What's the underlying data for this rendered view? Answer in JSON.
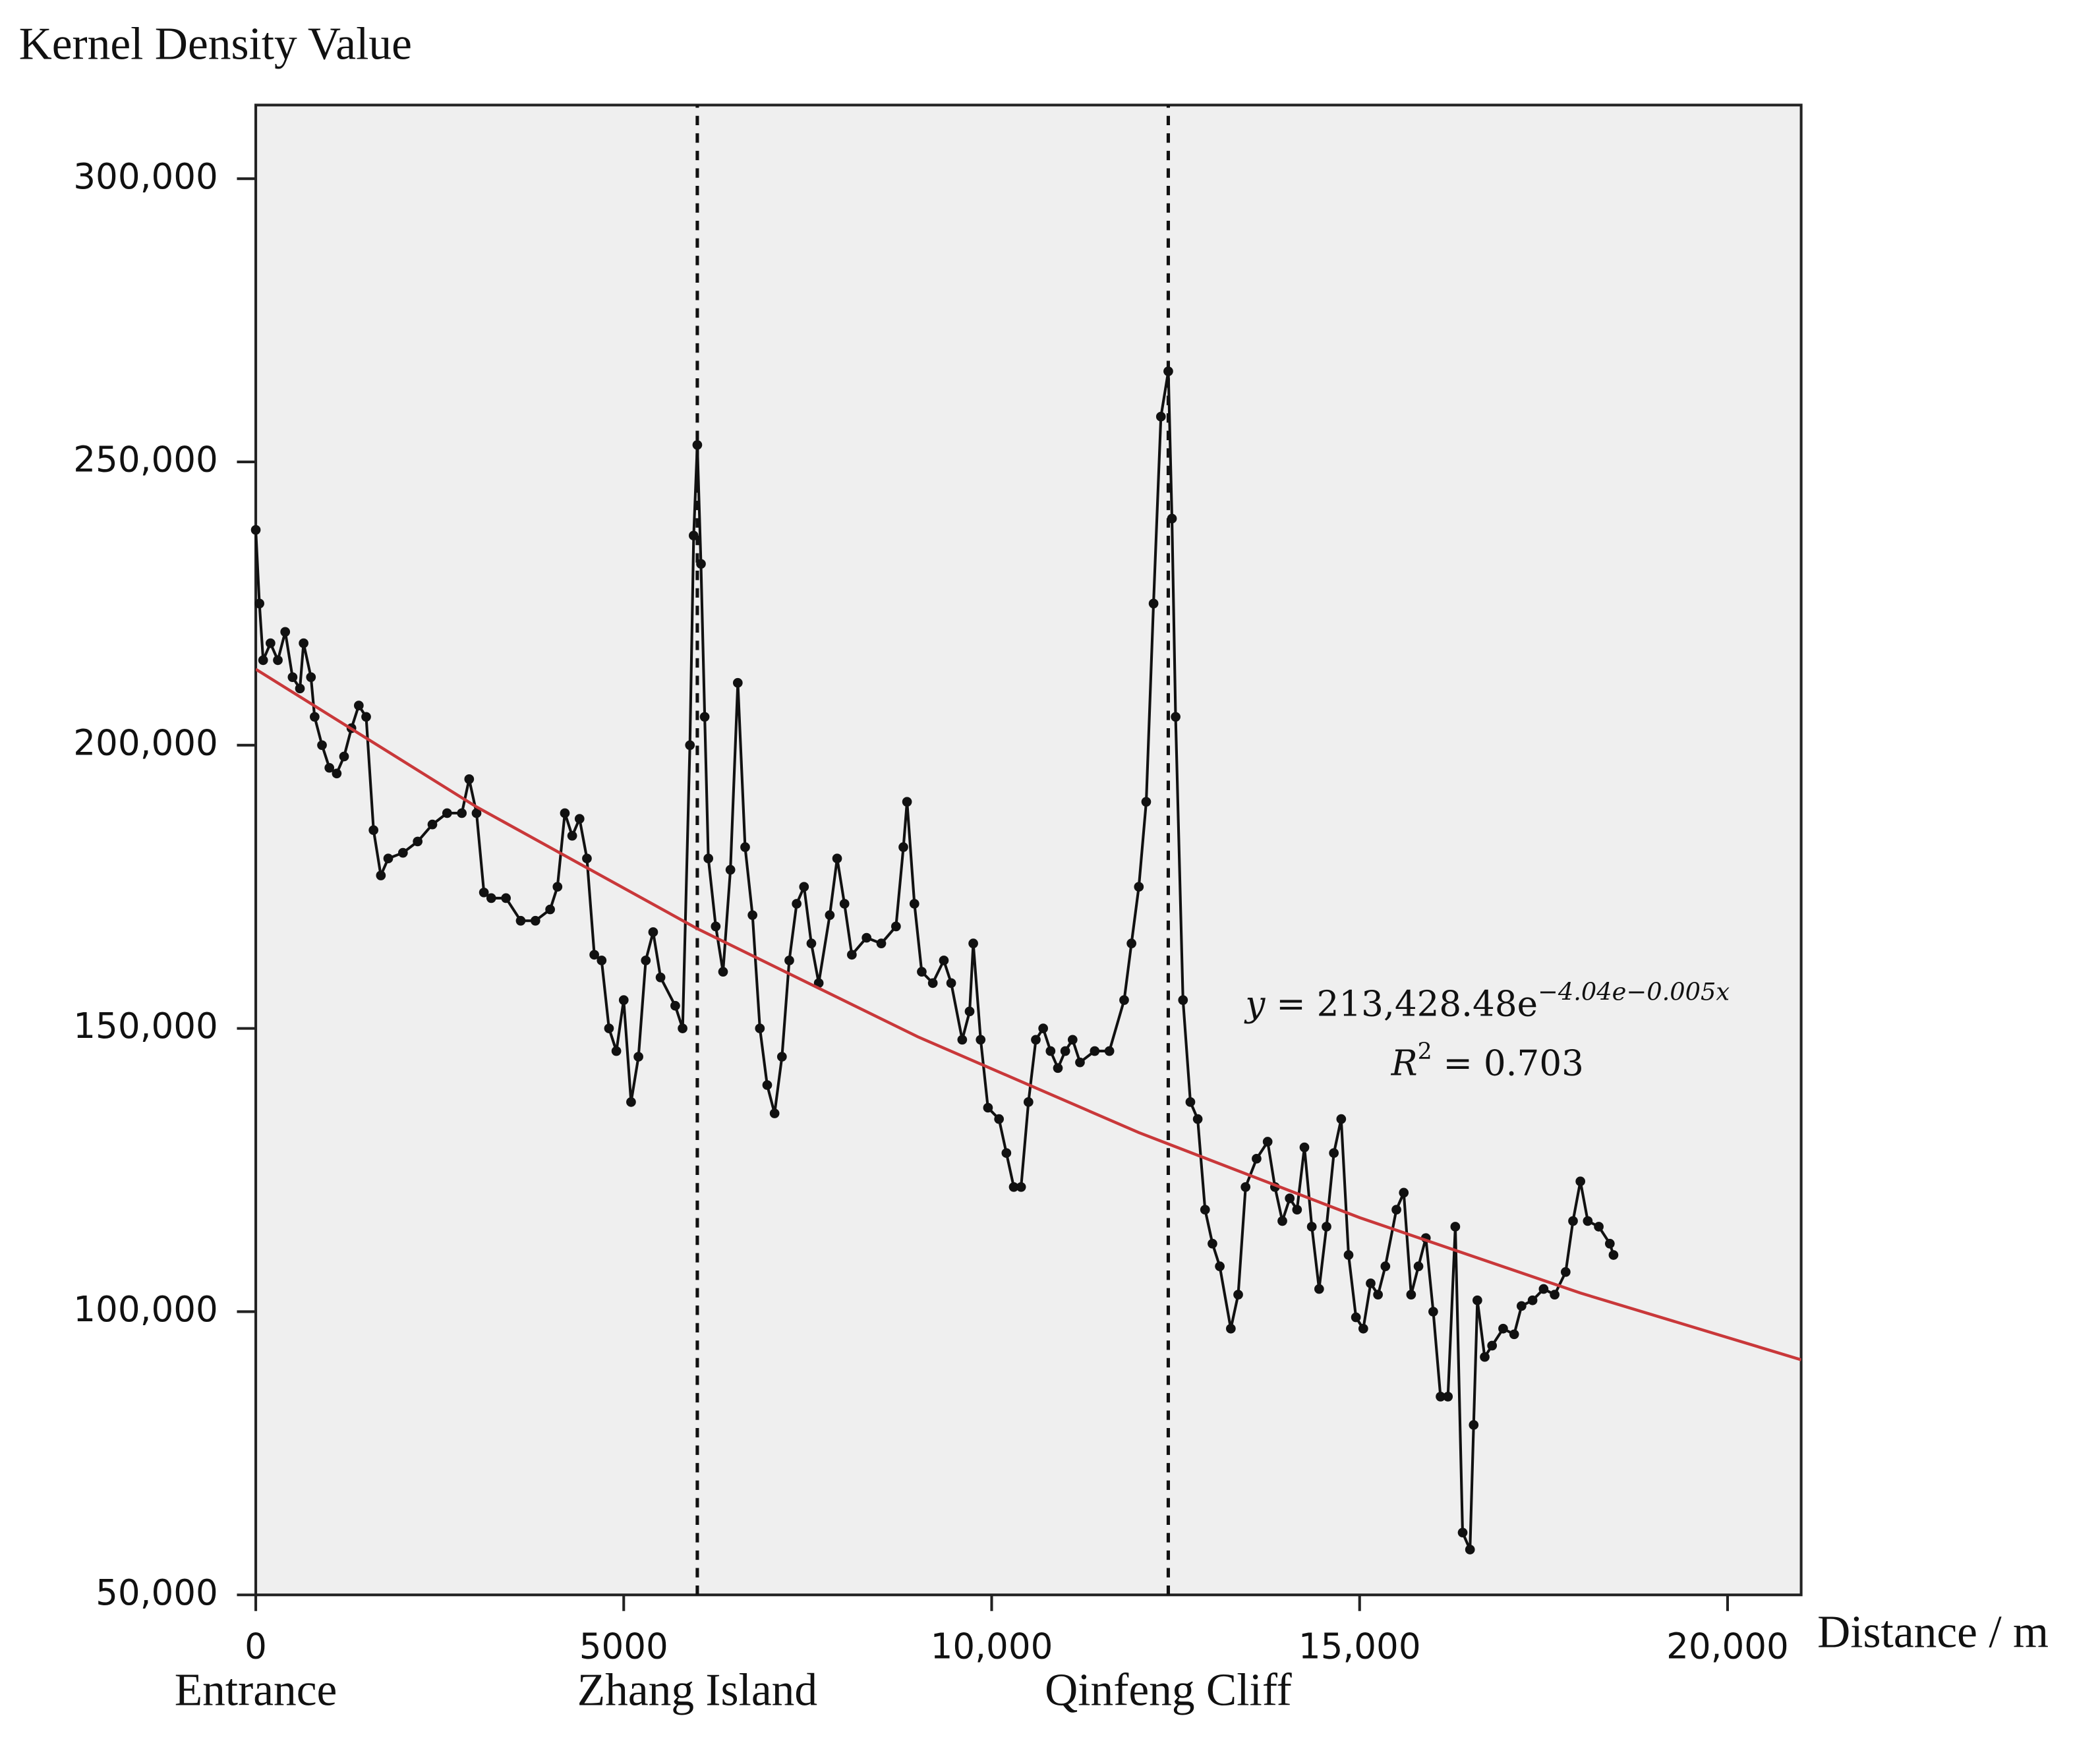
{
  "chart_data": {
    "type": "line",
    "y_axis_label": "Kernel Density Value",
    "x_axis_label": "Distance / m",
    "xlim": [
      0,
      21000
    ],
    "ylim": [
      50000,
      313000
    ],
    "xticks": [
      0,
      5000,
      {
        "value": 10000,
        "label": "10,000"
      },
      {
        "value": 15000,
        "label": "15,000"
      },
      {
        "value": 20000,
        "label": "20,000"
      }
    ],
    "yticks": [
      {
        "value": 50000,
        "label": "50,000"
      },
      {
        "value": 100000,
        "label": "100,000"
      },
      {
        "value": 150000,
        "label": "150,000"
      },
      {
        "value": 200000,
        "label": "200,000"
      },
      {
        "value": 250000,
        "label": "250,000"
      },
      {
        "value": 300000,
        "label": "300,000"
      }
    ],
    "background": "#efefef",
    "landmarks": [
      {
        "label": "Entrance",
        "x": 0,
        "dashed": false
      },
      {
        "label": "Zhang Island",
        "x": 6000,
        "dashed": true
      },
      {
        "label": "Qinfeng Cliff",
        "x": 12400,
        "dashed": true
      }
    ],
    "annotation": {
      "lhs": "y",
      "rhs": " = 213,428.48e",
      "exponent": "−4.04e−0.005x",
      "r_symbol": "R",
      "r_power": "2",
      "r_value": " = 0.703"
    },
    "trendline": {
      "color": "#c9383a",
      "x": [
        0,
        3000,
        6000,
        9000,
        12000,
        15000,
        18000,
        21000
      ],
      "values": [
        213400,
        189100,
        167600,
        148500,
        131600,
        116600,
        103300,
        91500
      ]
    },
    "series": [
      {
        "color": "#111111",
        "x": [
          0,
          50,
          100,
          200,
          300,
          400,
          500,
          600,
          650,
          750,
          800,
          900,
          1000,
          1100,
          1200,
          1300,
          1400,
          1500,
          1600,
          1700,
          1800,
          2000,
          2200,
          2400,
          2600,
          2800,
          2900,
          3000,
          3100,
          3200,
          3400,
          3600,
          3800,
          4000,
          4100,
          4200,
          4300,
          4400,
          4500,
          4600,
          4700,
          4800,
          4900,
          5000,
          5100,
          5200,
          5300,
          5400,
          5500,
          5700,
          5800,
          5900,
          5950,
          6000,
          6050,
          6100,
          6150,
          6250,
          6350,
          6450,
          6550,
          6650,
          6750,
          6850,
          6950,
          7050,
          7150,
          7250,
          7350,
          7450,
          7550,
          7650,
          7800,
          7900,
          8000,
          8100,
          8300,
          8500,
          8700,
          8800,
          8850,
          8950,
          9050,
          9200,
          9350,
          9450,
          9600,
          9700,
          9750,
          9850,
          9950,
          10100,
          10200,
          10300,
          10400,
          10500,
          10600,
          10700,
          10800,
          10900,
          11000,
          11100,
          11200,
          11400,
          11600,
          11800,
          11900,
          12000,
          12100,
          12200,
          12300,
          12400,
          12450,
          12500,
          12600,
          12700,
          12800,
          12900,
          13000,
          13100,
          13250,
          13350,
          13450,
          13600,
          13750,
          13850,
          13950,
          14050,
          14150,
          14250,
          14350,
          14450,
          14550,
          14650,
          14750,
          14850,
          14950,
          15050,
          15150,
          15250,
          15350,
          15500,
          15600,
          15700,
          15800,
          15900,
          16000,
          16100,
          16200,
          16300,
          16400,
          16500,
          16550,
          16600,
          16700,
          16800,
          16950,
          17100,
          17200,
          17350,
          17500,
          17650,
          17800,
          17900,
          18000,
          18100,
          18250,
          18400,
          18450
        ],
        "values": [
          238000,
          225000,
          215000,
          218000,
          215000,
          220000,
          212000,
          210000,
          218000,
          212000,
          205000,
          200000,
          196000,
          195000,
          198000,
          203000,
          207000,
          205000,
          185000,
          177000,
          180000,
          181000,
          183000,
          186000,
          188000,
          188000,
          194000,
          188000,
          174000,
          173000,
          173000,
          169000,
          169000,
          171000,
          175000,
          188000,
          184000,
          187000,
          180000,
          163000,
          162000,
          150000,
          146000,
          155000,
          137000,
          145000,
          162000,
          167000,
          159000,
          154000,
          150000,
          200000,
          237000,
          253000,
          232000,
          205000,
          180000,
          168000,
          160000,
          178000,
          211000,
          182000,
          170000,
          150000,
          140000,
          135000,
          145000,
          162000,
          172000,
          175000,
          165000,
          158000,
          170000,
          180000,
          172000,
          163000,
          166000,
          165000,
          168000,
          182000,
          190000,
          172000,
          160000,
          158000,
          162000,
          158000,
          148000,
          153000,
          165000,
          148000,
          136000,
          134000,
          128000,
          122000,
          122000,
          137000,
          148000,
          150000,
          146000,
          143000,
          146000,
          148000,
          144000,
          146000,
          146000,
          155000,
          165000,
          175000,
          190000,
          225000,
          258000,
          266000,
          240000,
          205000,
          155000,
          137000,
          134000,
          118000,
          112000,
          108000,
          97000,
          103000,
          122000,
          127000,
          130000,
          122000,
          116000,
          120000,
          118000,
          129000,
          115000,
          104000,
          115000,
          128000,
          134000,
          110000,
          99000,
          97000,
          105000,
          103000,
          108000,
          118000,
          121000,
          103000,
          108000,
          113000,
          100000,
          85000,
          85000,
          115000,
          61000,
          58000,
          80000,
          102000,
          92000,
          94000,
          97000,
          96000,
          101000,
          102000,
          104000,
          103000,
          107000,
          116000,
          123000,
          116000,
          115000,
          112000,
          110000
        ]
      }
    ]
  }
}
